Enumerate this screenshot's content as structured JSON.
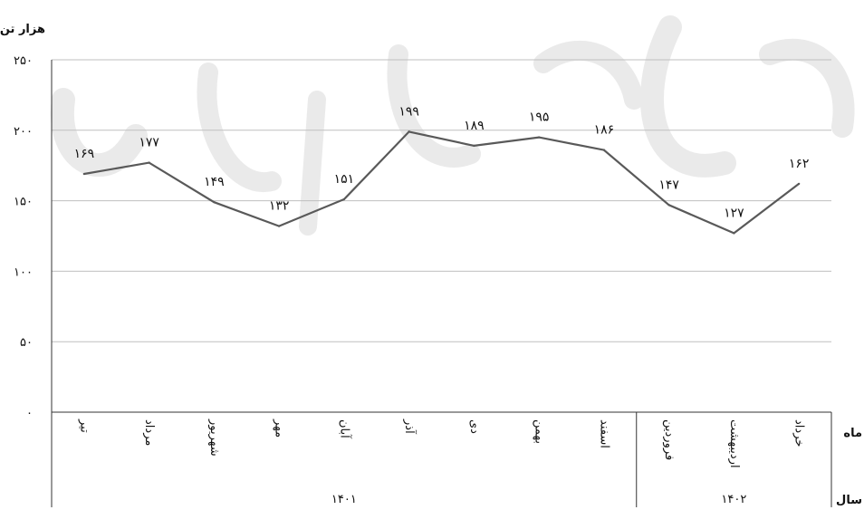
{
  "chart_data": {
    "type": "line",
    "ylabel": "هزار تن",
    "ylim": [
      0,
      250
    ],
    "yticks": [
      0,
      50,
      100,
      150,
      200,
      250
    ],
    "ytick_labels": [
      "۰",
      "۵۰",
      "۱۰۰",
      "۱۵۰",
      "۲۰۰",
      "۲۵۰"
    ],
    "categories": [
      "تیر",
      "مرداد",
      "شهریور",
      "مهر",
      "آبان",
      "آذر",
      "دی",
      "بهمن",
      "اسفند",
      "فروردین",
      "اردیبهشت",
      "خرداد"
    ],
    "values": [
      169,
      177,
      149,
      132,
      151,
      199,
      189,
      195,
      186,
      147,
      127,
      162
    ],
    "value_labels": [
      "۱۶۹",
      "۱۷۷",
      "۱۴۹",
      "۱۳۲",
      "۱۵۱",
      "۱۹۹",
      "۱۸۹",
      "۱۹۵",
      "۱۸۶",
      "۱۴۷",
      "۱۲۷",
      "۱۶۲"
    ],
    "years": [
      {
        "label": "۱۴۰۱",
        "count": 9
      },
      {
        "label": "۱۴۰۲",
        "count": 3
      }
    ],
    "row_label_month": "ماه",
    "row_label_year": "سال",
    "grid": true,
    "legend": "none",
    "line_color": "#595959",
    "grid_color": "#bfbfbf",
    "watermark": "مرکز آمار ایران"
  }
}
